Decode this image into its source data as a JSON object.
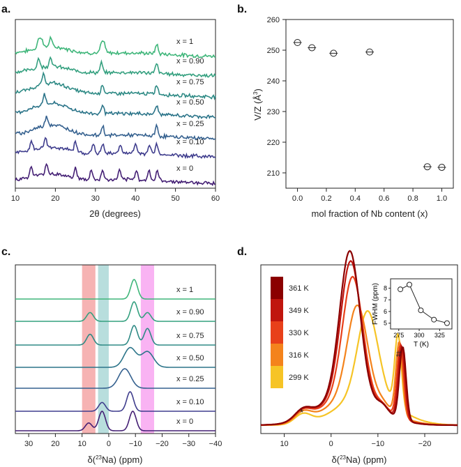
{
  "panel_labels": {
    "a": "a.",
    "b": "b.",
    "c": "c.",
    "d": "d."
  },
  "colors": {
    "series_a": [
      "#3fb67a",
      "#34a07f",
      "#2e8a85",
      "#2b7489",
      "#35618f",
      "#3e5295",
      "#3f3d8d",
      "#441f74"
    ],
    "temps": [
      "#8b0000",
      "#c0150e",
      "#e8401a",
      "#f4831c",
      "#f6c426"
    ]
  },
  "chart_data": [
    {
      "type": "line",
      "panel": "a",
      "title": "",
      "xlabel": "2θ (degrees)",
      "ylabel": "",
      "xlim": [
        10,
        60
      ],
      "xticks": [
        "10",
        "20",
        "30",
        "40",
        "50",
        "60"
      ],
      "series": [
        {
          "name": "x = 1",
          "peaks": [
            15.8,
            16.6,
            18.8,
            31.5,
            32.2,
            45.3
          ]
        },
        {
          "name": "x = 0.90",
          "peaks": [
            15.8,
            18.8,
            31.5,
            45.3
          ]
        },
        {
          "name": "x = 0.75",
          "peaks": [
            17.0,
            31.8,
            45.3
          ]
        },
        {
          "name": "x = 0.50",
          "peaks": [
            17.2,
            31.8,
            45.3
          ]
        },
        {
          "name": "x = 0.25",
          "peaks": [
            17.8,
            31.8,
            45.3
          ]
        },
        {
          "name": "x = 0.10",
          "peaks": [
            14.0,
            17.5,
            25.0,
            29.5,
            31.8,
            36.2,
            40.0,
            43.5,
            45.3
          ]
        },
        {
          "name": "x = 0",
          "peaks": [
            14.0,
            17.8,
            25.0,
            29.0,
            31.8,
            36.0,
            40.2,
            43.4,
            45.5
          ]
        }
      ]
    },
    {
      "type": "scatter",
      "panel": "b",
      "xlabel": "mol fraction of Nb content (x)",
      "ylabel_main": "V/Z (Å",
      "ylabel_sup": "3",
      "ylabel_end": ")",
      "xlim": [
        -0.08,
        1.08
      ],
      "ylim": [
        205,
        260
      ],
      "xticks": [
        "0.0",
        "0.2",
        "0.4",
        "0.6",
        "0.8",
        "1.0"
      ],
      "yticks": [
        "210",
        "220",
        "230",
        "240",
        "250",
        "260"
      ],
      "x": [
        0.0,
        0.1,
        0.25,
        0.5,
        0.9,
        1.0
      ],
      "y": [
        252.5,
        250.8,
        249.0,
        249.4,
        212.0,
        211.8
      ]
    },
    {
      "type": "line",
      "panel": "c",
      "xlabel_pre": "δ(",
      "xlabel_sup": "23",
      "xlabel_post": "Na) (ppm)",
      "xlim": [
        35,
        -40
      ],
      "xticks": [
        "30",
        "20",
        "10",
        "0",
        "−10",
        "−20",
        "−30",
        "−40"
      ],
      "shaded_regions": [
        {
          "from": 10,
          "to": 5,
          "color": "#f4a0a0"
        },
        {
          "from": 4,
          "to": 0,
          "color": "#a6d6d4"
        },
        {
          "from": -12,
          "to": -17,
          "color": "#f7a0f0"
        }
      ],
      "series": [
        {
          "name": "x = 1",
          "peaks": [
            [
              -9.5,
              1.0
            ]
          ]
        },
        {
          "name": "x = 0.90",
          "peaks": [
            [
              7,
              0.45
            ],
            [
              -9.5,
              1.0
            ],
            [
              -14.5,
              0.45
            ]
          ]
        },
        {
          "name": "x = 0.75",
          "peaks": [
            [
              7,
              0.55
            ],
            [
              -9.5,
              1.0
            ],
            [
              -14.5,
              0.85
            ]
          ]
        },
        {
          "name": "x = 0.50",
          "peaks": [
            [
              -8,
              1.0
            ],
            [
              -14.5,
              0.8
            ]
          ]
        },
        {
          "name": "x = 0.25",
          "peaks": [
            [
              -6,
              1.0
            ]
          ]
        },
        {
          "name": "x = 0.10",
          "peaks": [
            [
              2.5,
              0.45
            ],
            [
              -8,
              1.0
            ]
          ]
        },
        {
          "name": "x = 0",
          "peaks": [
            [
              7.5,
              0.4
            ],
            [
              2.5,
              1.0
            ],
            [
              -9,
              1.0
            ]
          ]
        }
      ]
    },
    {
      "type": "line",
      "panel": "d",
      "xlabel_pre": "δ(",
      "xlabel_sup": "23",
      "xlabel_post": "Na) (ppm)",
      "xlim": [
        15,
        -27
      ],
      "xticks": [
        "10",
        "0",
        "−10",
        "−20"
      ],
      "annotations": [
        "*",
        "#"
      ],
      "series": [
        {
          "name": "361 K",
          "main_peak": -4.0,
          "height": 1.0
        },
        {
          "name": "349 K",
          "main_peak": -4.2,
          "height": 0.93
        },
        {
          "name": "330 K",
          "main_peak": -4.6,
          "height": 0.82
        },
        {
          "name": "316 K",
          "main_peak": -5.6,
          "height": 0.62
        },
        {
          "name": "299 K",
          "main_peak": -7.8,
          "height": 0.58
        }
      ],
      "inset": {
        "type": "line",
        "xlabel": "T (K)",
        "ylabel": "FWHM (ppm)",
        "xlim": [
          265,
          340
        ],
        "ylim": [
          4.5,
          8.8
        ],
        "xticks": [
          "275",
          "300",
          "325"
        ],
        "yticks": [
          "5",
          "6",
          "7",
          "8"
        ],
        "x": [
          277,
          288,
          302,
          318,
          334
        ],
        "y": [
          7.9,
          8.3,
          6.1,
          5.3,
          5.0
        ]
      }
    }
  ]
}
